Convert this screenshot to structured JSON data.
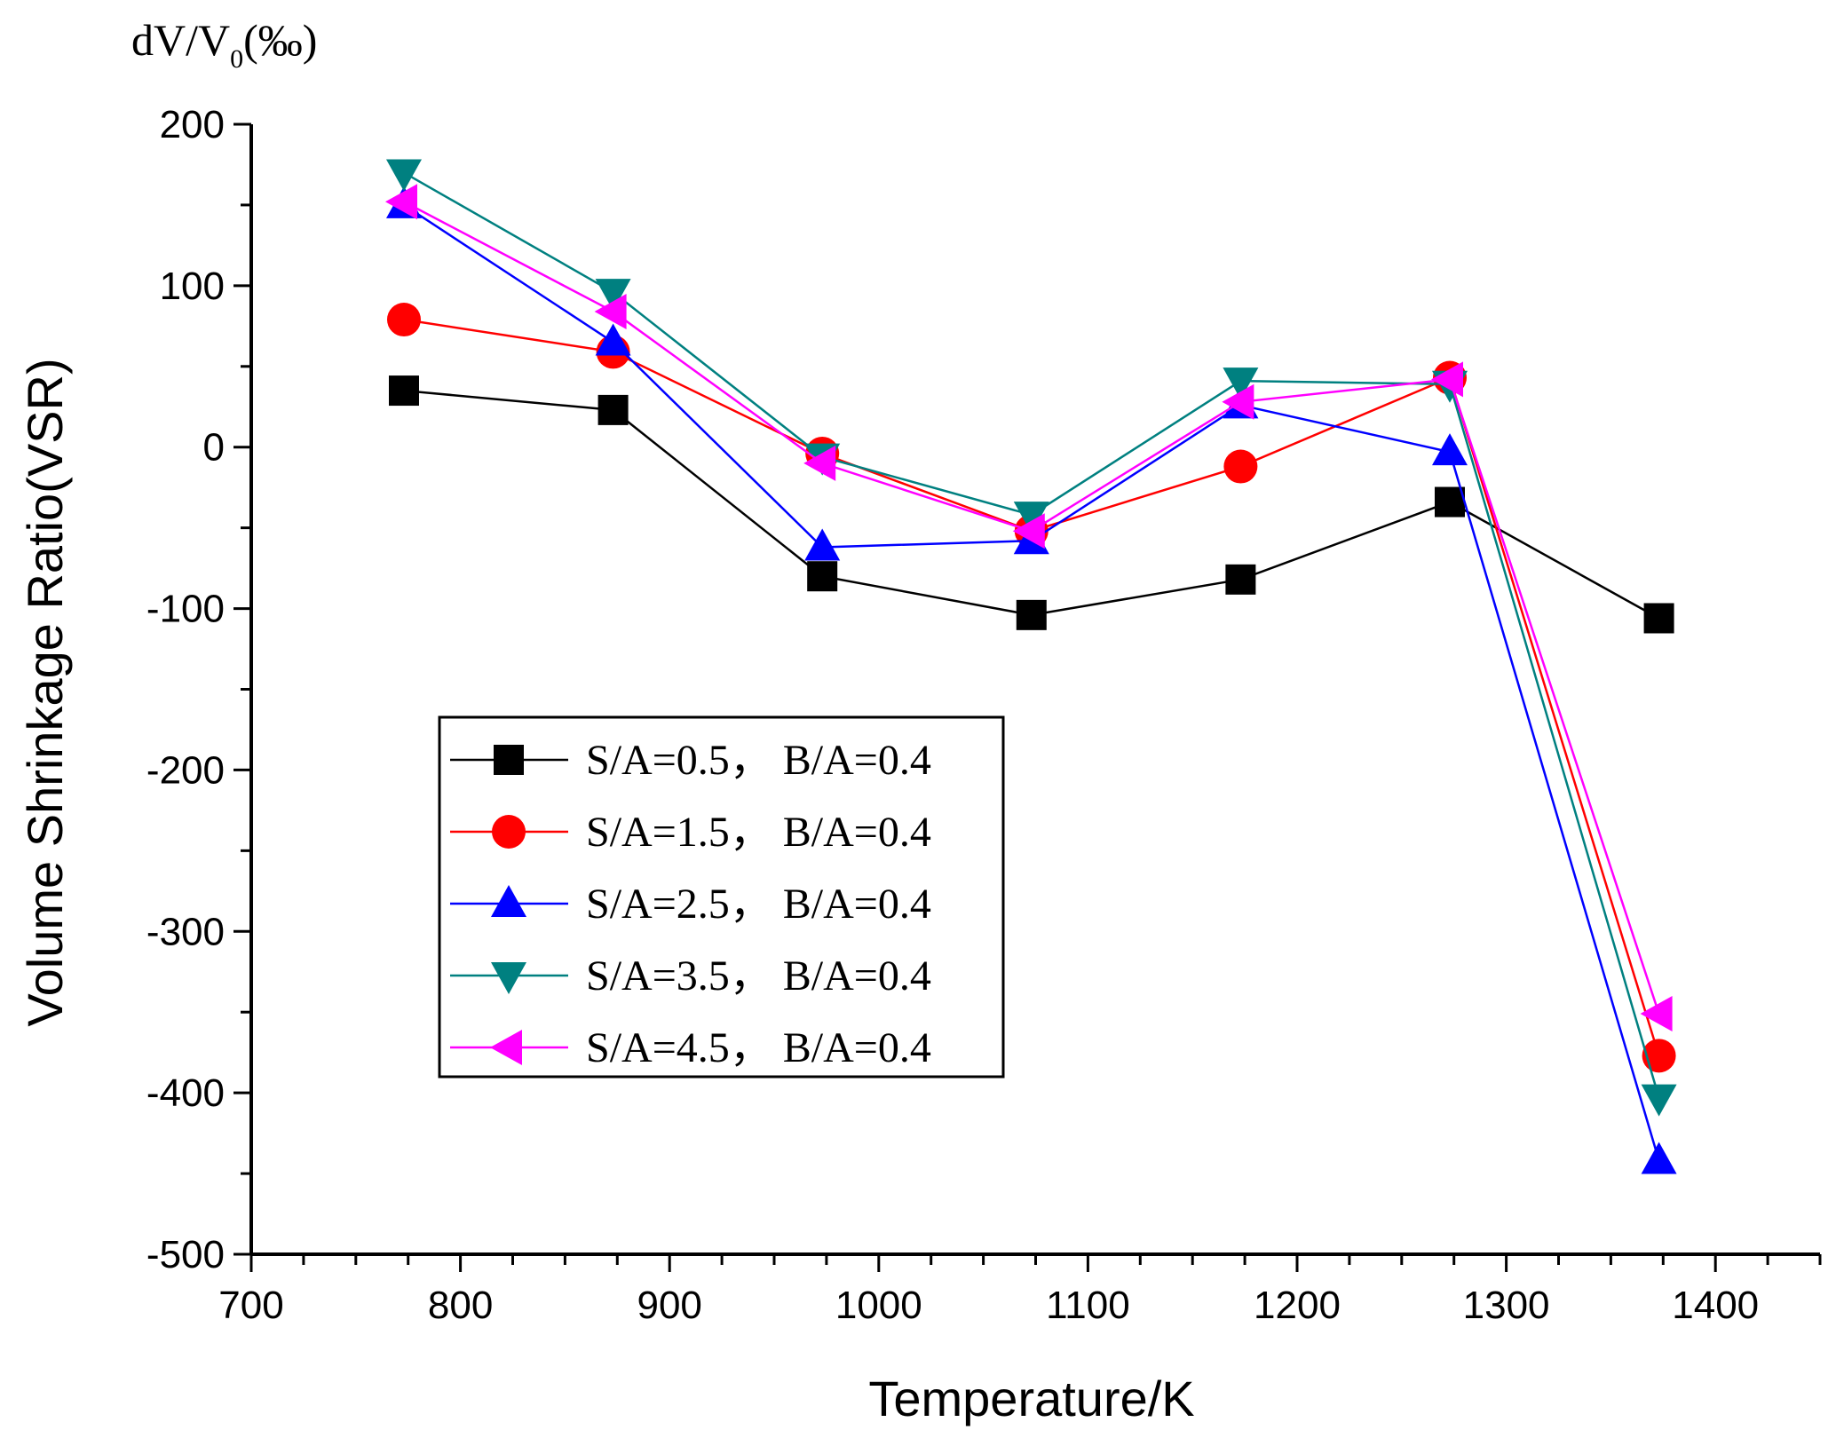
{
  "chart_data": {
    "type": "line",
    "y_unit_label": {
      "prefix": "dV/V",
      "subscript": "0",
      "suffix": "(‰)"
    },
    "xlabel": "Temperature/K",
    "ylabel": "Volume Shrinkage Ratio(VSR)",
    "xlim": [
      700,
      1450
    ],
    "ylim": [
      -500,
      200
    ],
    "x_ticks": [
      "700",
      "800",
      "900",
      "1000",
      "1100",
      "1200",
      "1300",
      "1400"
    ],
    "y_ticks": [
      "200",
      "100",
      "0",
      "-100",
      "-200",
      "-300",
      "-400",
      "-500"
    ],
    "x": [
      773,
      873,
      973,
      1073,
      1173,
      1273,
      1373
    ],
    "legend_position": "middle-left",
    "series": [
      {
        "name": "S/A=0.5，  B/A=0.4",
        "color": "#000000",
        "marker": "square",
        "values": [
          35,
          23,
          -80,
          -104,
          -82,
          -34,
          -106
        ]
      },
      {
        "name": "S/A=1.5，  B/A=0.4",
        "color": "#ff0000",
        "marker": "circle",
        "values": [
          79,
          59,
          -4,
          -52,
          -12,
          43,
          -377
        ]
      },
      {
        "name": "S/A=2.5，  B/A=0.4",
        "color": "#0000ff",
        "marker": "triangle-up",
        "values": [
          150,
          65,
          -62,
          -58,
          26,
          -3,
          -442
        ]
      },
      {
        "name": "S/A=3.5，  B/A=0.4",
        "color": "#008080",
        "marker": "triangle-down",
        "values": [
          170,
          96,
          -6,
          -42,
          41,
          39,
          -403
        ]
      },
      {
        "name": "S/A=4.5，  B/A=0.4",
        "color": "#ff00ff",
        "marker": "triangle-left",
        "values": [
          152,
          84,
          -10,
          -52,
          28,
          42,
          -351
        ]
      }
    ]
  }
}
